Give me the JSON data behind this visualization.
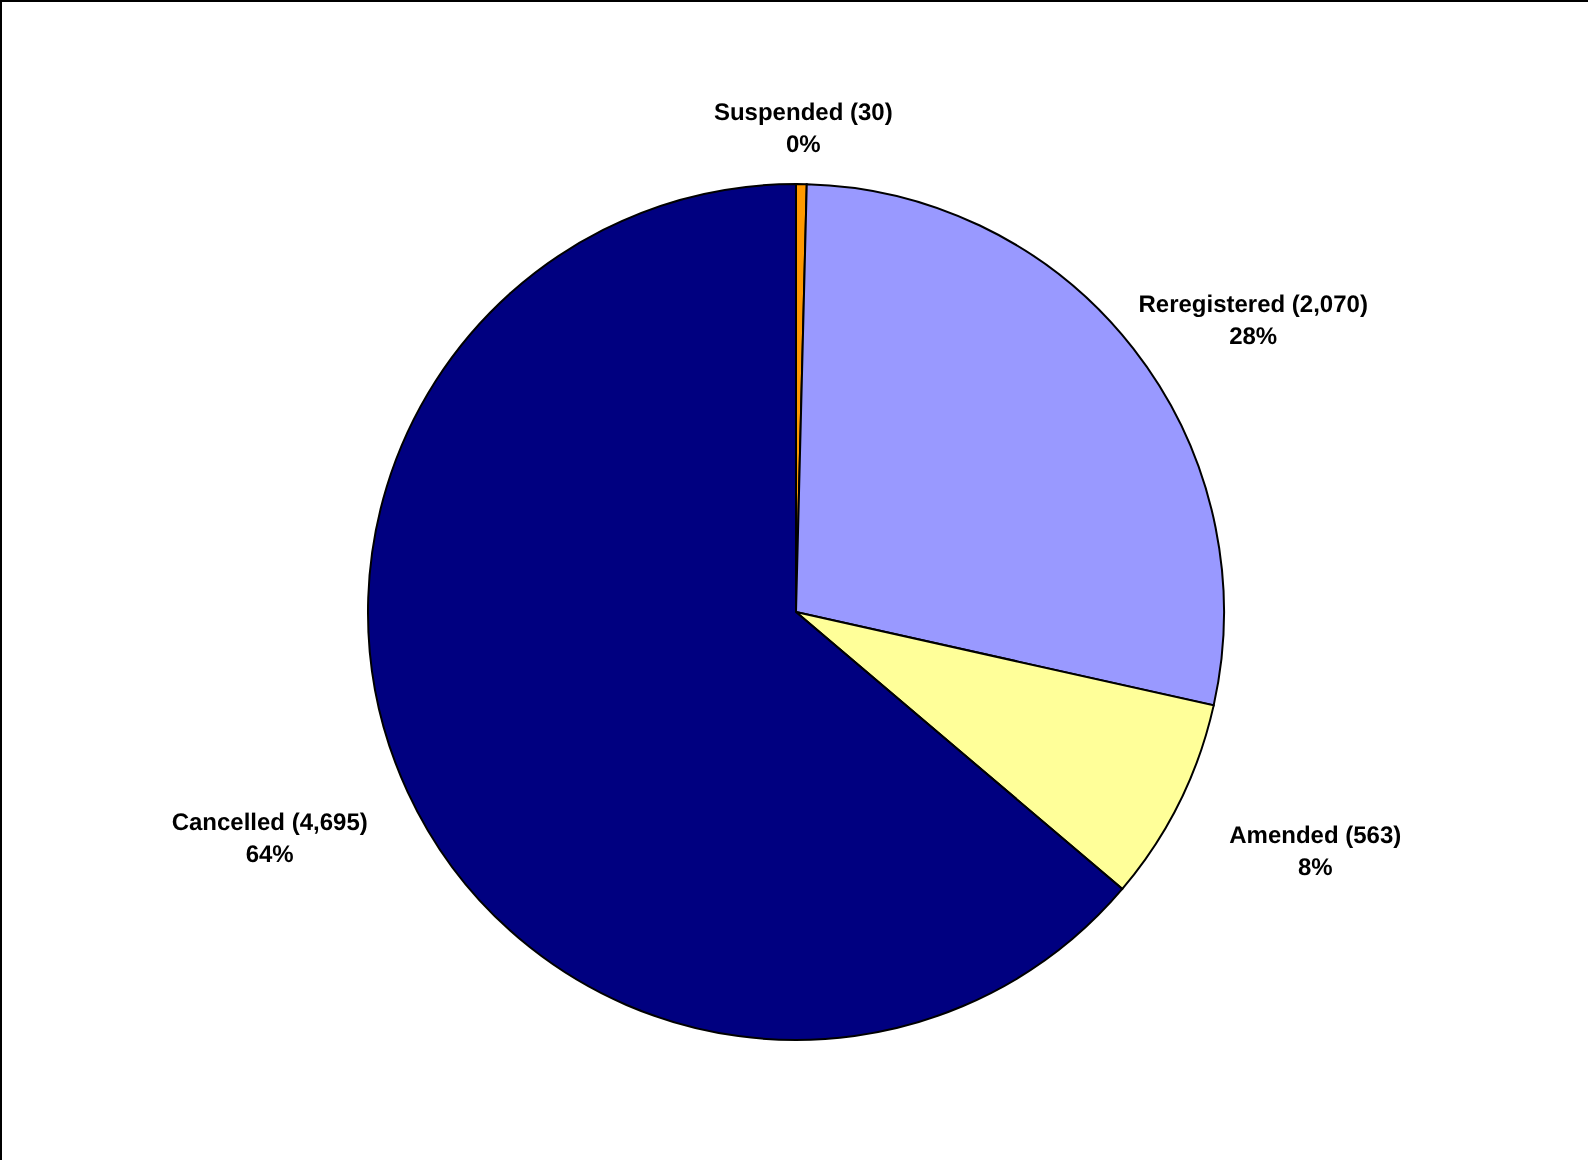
{
  "chart_data": {
    "type": "pie",
    "categories": [
      "Suspended (30)",
      "Reregistered (2,070)",
      "Amended (563)",
      "Cancelled (4,695)"
    ],
    "values": [
      0.4,
      28.1,
      7.7,
      63.8
    ],
    "value_labels": [
      "0%",
      "28%",
      "8%",
      "64%"
    ],
    "colors": [
      "#ff9900",
      "#9999ff",
      "#ffff99",
      "#000080"
    ]
  }
}
